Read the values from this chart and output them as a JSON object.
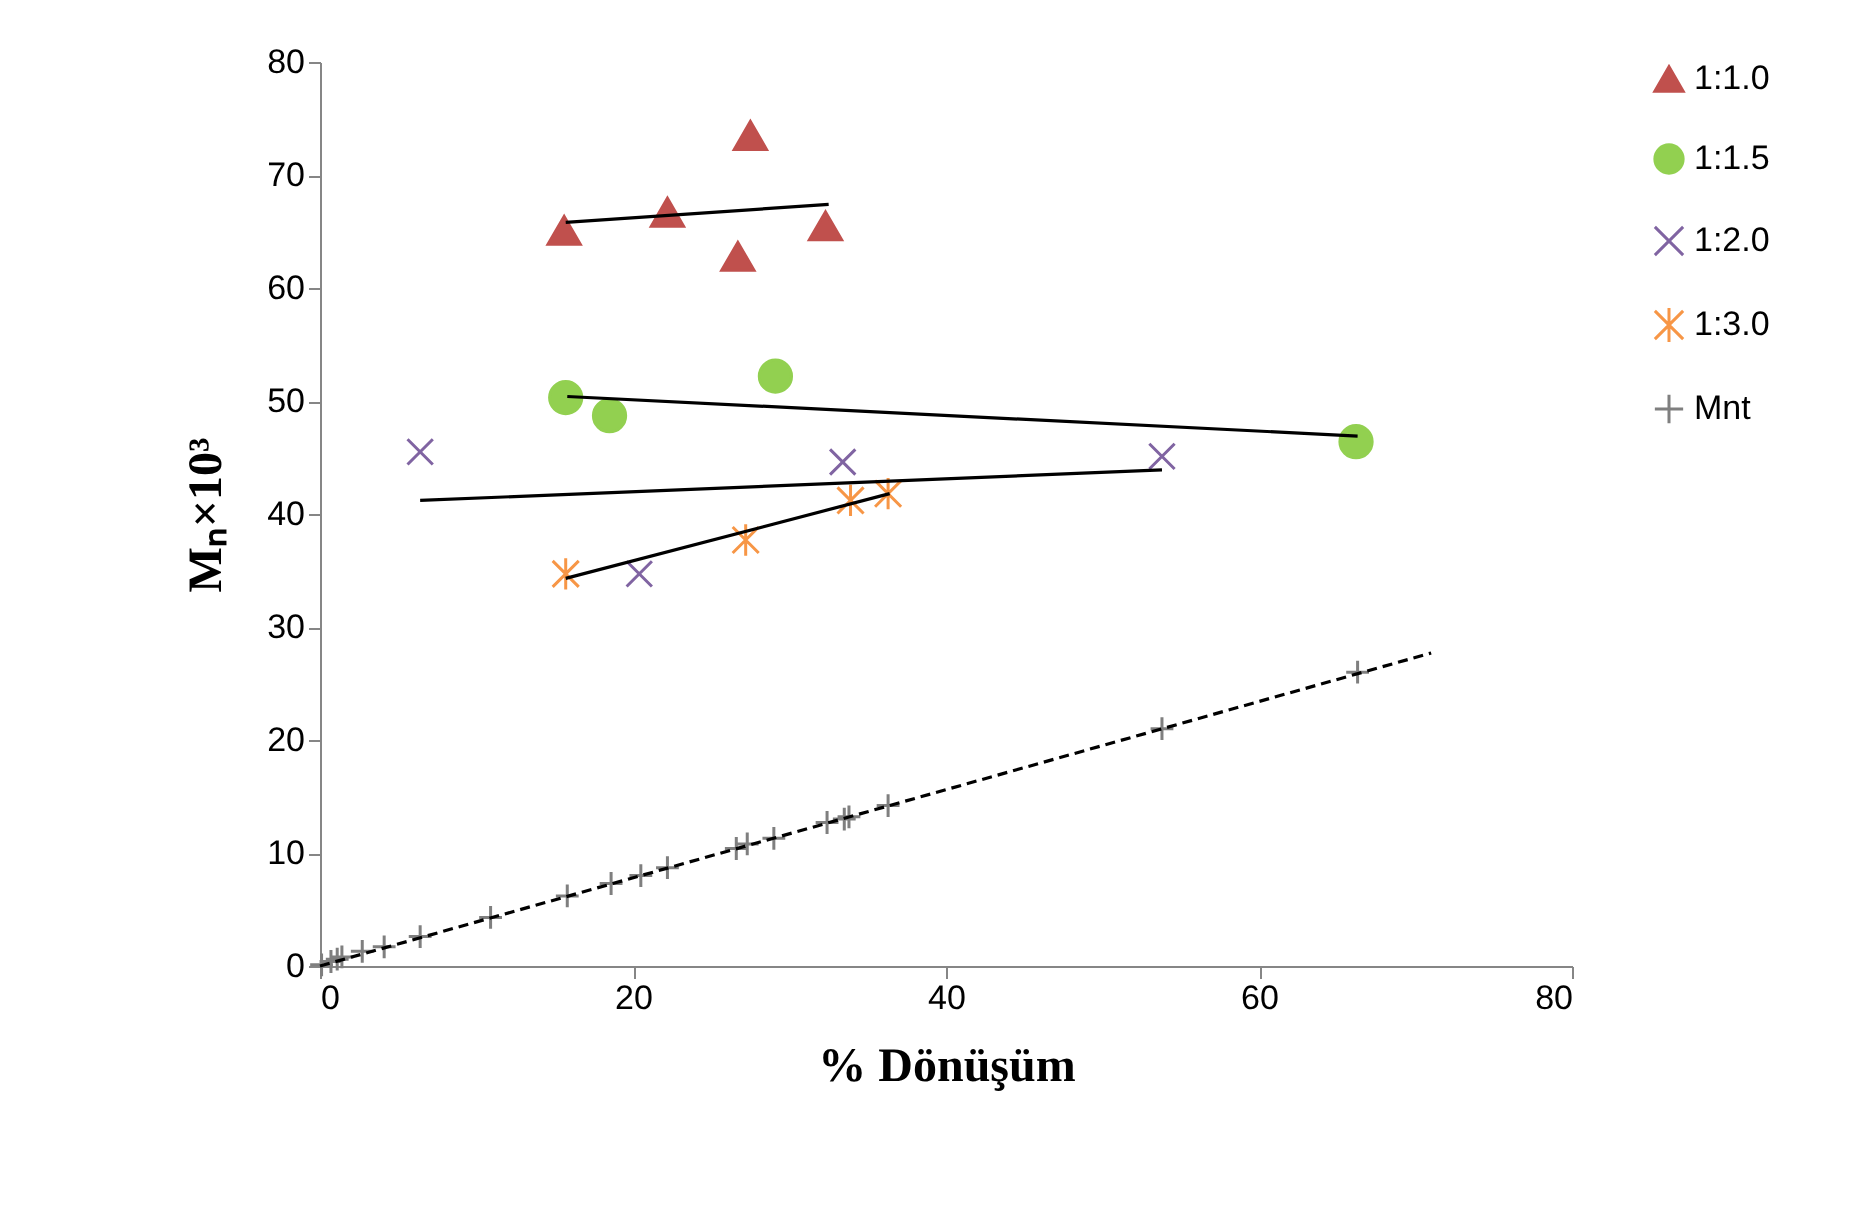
{
  "chart_data": {
    "type": "scatter",
    "xlabel": "% Dönüşüm",
    "ylabel": "Mₙ×10³",
    "xlim": [
      0,
      80
    ],
    "ylim": [
      0,
      80
    ],
    "xticks": [
      0,
      20,
      40,
      60,
      80
    ],
    "yticks": [
      0,
      10,
      20,
      30,
      40,
      50,
      60,
      70,
      80
    ],
    "grid": false,
    "legend": "right",
    "series": [
      {
        "name": "1:1.0",
        "color": "#c0504d",
        "marker": "triangle",
        "x": [
          15.6,
          22.2,
          26.7,
          27.5,
          32.3
        ],
        "values": [
          65.1,
          66.7,
          62.8,
          73.5,
          65.5
        ]
      },
      {
        "name": "1:1.5",
        "color": "#92d050",
        "marker": "circle",
        "x": [
          15.7,
          18.5,
          29.1,
          66.2
        ],
        "values": [
          50.3,
          48.7,
          52.2,
          46.4
        ]
      },
      {
        "name": "1:2.0",
        "color": "#8064a2",
        "marker": "x",
        "x": [
          6.4,
          20.4,
          33.4,
          53.8
        ],
        "values": [
          45.5,
          34.7,
          44.6,
          45.1
        ]
      },
      {
        "name": "1:3.0",
        "color": "#f79646",
        "marker": "cross",
        "x": [
          15.7,
          27.2,
          33.9,
          36.3
        ],
        "values": [
          34.7,
          37.7,
          41.2,
          41.8
        ]
      },
      {
        "name": "Mnt",
        "color": "#7f7f7f",
        "marker": "plus",
        "x": [
          0.1,
          0.7,
          1.1,
          1.4,
          2.7,
          4.1,
          6.4,
          10.9,
          15.8,
          18.6,
          20.5,
          22.2,
          26.6,
          27.3,
          29.0,
          32.4,
          33.5,
          33.8,
          36.3,
          53.8,
          66.3
        ],
        "values": [
          0.1,
          0.4,
          0.6,
          0.8,
          1.3,
          1.7,
          2.6,
          4.3,
          6.2,
          7.3,
          8.0,
          8.7,
          10.4,
          10.8,
          11.3,
          12.7,
          13.0,
          13.2,
          14.2,
          21.0,
          26.0
        ]
      },
      {
        "type": "line",
        "color": "#000000",
        "line_style": "solid",
        "x": [
          15.7,
          32.5
        ],
        "values": [
          65.8,
          67.4
        ]
      },
      {
        "type": "line",
        "color": "#000000",
        "line_style": "solid",
        "x": [
          15.8,
          66.3
        ],
        "values": [
          50.4,
          46.9
        ]
      },
      {
        "type": "line",
        "color": "#000000",
        "line_style": "solid",
        "x": [
          6.4,
          53.8
        ],
        "values": [
          41.2,
          43.9
        ]
      },
      {
        "type": "line",
        "color": "#000000",
        "line_style": "solid",
        "x": [
          15.7,
          36.4
        ],
        "values": [
          34.3,
          41.8
        ]
      },
      {
        "type": "line",
        "color": "#000000",
        "line_style": "dashed",
        "x": [
          0,
          71.0
        ],
        "values": [
          0,
          27.7
        ]
      }
    ]
  }
}
